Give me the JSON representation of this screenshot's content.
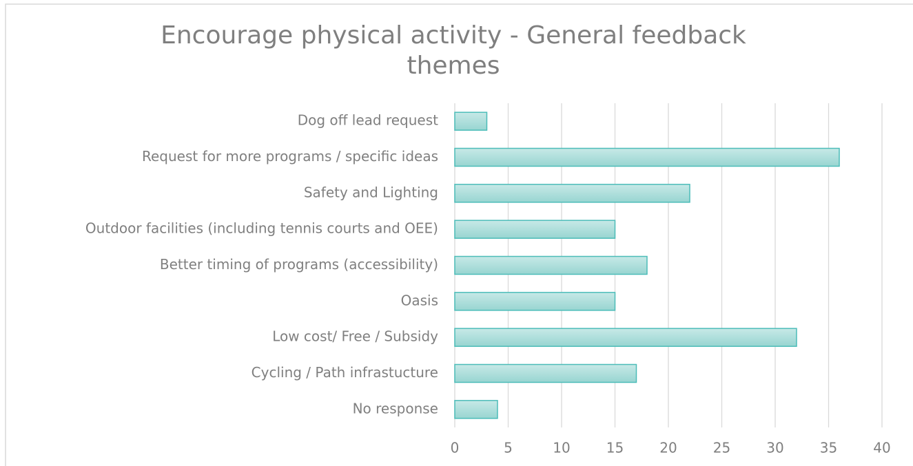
{
  "chart_data": {
    "type": "hbar",
    "title": "Encourage physical activity - General feedback themes",
    "categories": [
      "Dog off lead request",
      "Request for more programs / specific ideas",
      "Safety and Lighting",
      "Outdoor facilities (including tennis courts and OEE)",
      "Better timing of programs (accessibility)",
      "Oasis",
      "Low cost/ Free / Subsidy",
      "Cycling / Path infrastucture",
      "No response"
    ],
    "values": [
      3,
      36,
      22,
      15,
      18,
      15,
      32,
      17,
      4
    ],
    "color": "#a8dcd9",
    "edge_color": "#4bbcb8",
    "xlim": [
      0,
      40
    ],
    "xticks": [
      0,
      5,
      10,
      15,
      20,
      25,
      30,
      35,
      40
    ],
    "grid": true
  }
}
